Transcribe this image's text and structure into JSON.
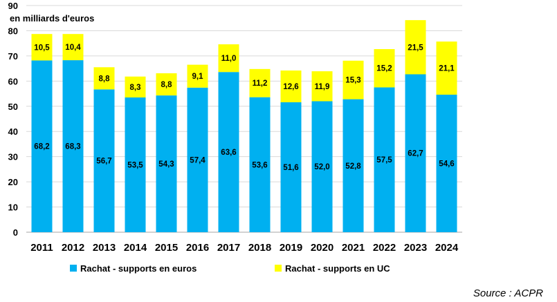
{
  "chart_data": {
    "type": "bar",
    "stacked": true,
    "ylabel": "en milliards d'euros",
    "ylim": [
      0,
      90
    ],
    "yticks": [
      0,
      10,
      20,
      30,
      40,
      50,
      60,
      70,
      80,
      90
    ],
    "categories": [
      "2011",
      "2012",
      "2013",
      "2014",
      "2015",
      "2016",
      "2017",
      "2018",
      "2019",
      "2020",
      "2021",
      "2022",
      "2023",
      "2024"
    ],
    "series": [
      {
        "name": "Rachat - supports en euros",
        "color": "#00b0f0",
        "values": [
          68.2,
          68.3,
          56.7,
          53.5,
          54.3,
          57.4,
          63.6,
          53.6,
          51.6,
          52.0,
          52.8,
          57.5,
          62.7,
          54.6
        ],
        "labels": [
          "68,2",
          "68,3",
          "56,7",
          "53,5",
          "54,3",
          "57,4",
          "63,6",
          "53,6",
          "51,6",
          "52,0",
          "52,8",
          "57,5",
          "62,7",
          "54,6"
        ]
      },
      {
        "name": "Rachat - supports en UC",
        "color": "#ffff00",
        "values": [
          10.5,
          10.4,
          8.8,
          8.3,
          8.8,
          9.1,
          11.0,
          11.2,
          12.6,
          11.9,
          15.3,
          15.2,
          21.5,
          21.1
        ],
        "labels": [
          "10,5",
          "10,4",
          "8,8",
          "8,3",
          "8,8",
          "9,1",
          "11,0",
          "11,2",
          "12,6",
          "11,9",
          "15,3",
          "15,2",
          "21,5",
          "21,1"
        ]
      }
    ],
    "grid": true,
    "legend": "bottom"
  },
  "source": "Source : ACPR"
}
